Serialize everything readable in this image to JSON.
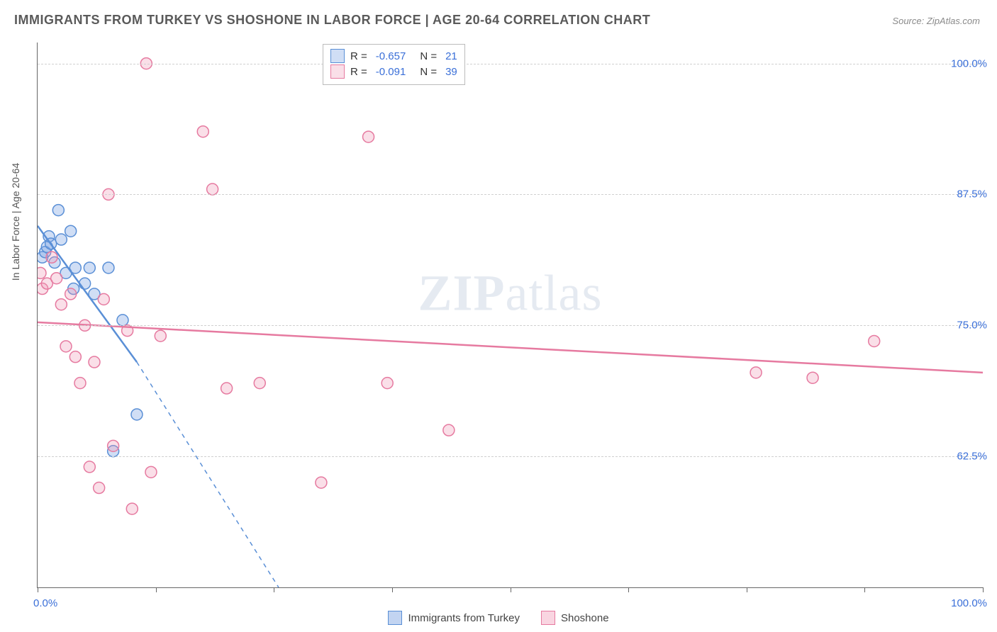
{
  "title": "IMMIGRANTS FROM TURKEY VS SHOSHONE IN LABOR FORCE | AGE 20-64 CORRELATION CHART",
  "source_label": "Source:",
  "source_value": "ZipAtlas.com",
  "ylabel": "In Labor Force | Age 20-64",
  "watermark_bold": "ZIP",
  "watermark_light": "atlas",
  "chart": {
    "type": "scatter",
    "xlim": [
      0,
      100
    ],
    "ylim": [
      50,
      102
    ],
    "x_tick_positions": [
      0,
      12.5,
      25,
      37.5,
      50,
      62.5,
      75,
      87.5,
      100
    ],
    "y_grid_positions": [
      62.5,
      75,
      87.5,
      100
    ],
    "y_tick_labels": [
      "62.5%",
      "75.0%",
      "87.5%",
      "100.0%"
    ],
    "x_left_label": "0.0%",
    "x_right_label": "100.0%",
    "background_color": "#ffffff",
    "grid_color": "#d0d0d0",
    "axis_color": "#666666",
    "tick_label_color": "#3a6fd8",
    "marker_radius": 8,
    "marker_stroke_width": 1.5,
    "trend_line_width": 2.5,
    "series": [
      {
        "name": "Immigrants from Turkey",
        "fill": "rgba(120,160,225,0.35)",
        "stroke": "#5a8fd6",
        "R": "-0.657",
        "N": "21",
        "trend": {
          "x1": 0,
          "y1": 84.5,
          "x2": 10.5,
          "y2": 71.5,
          "dash_extend_x2": 25.5,
          "dash_extend_y2": 50
        },
        "points": [
          [
            0.5,
            81.5
          ],
          [
            0.8,
            82.0
          ],
          [
            1.0,
            82.5
          ],
          [
            1.2,
            83.5
          ],
          [
            1.4,
            82.8
          ],
          [
            1.8,
            81.0
          ],
          [
            2.2,
            86.0
          ],
          [
            2.5,
            83.2
          ],
          [
            3.0,
            80.0
          ],
          [
            3.5,
            84.0
          ],
          [
            3.8,
            78.5
          ],
          [
            4.0,
            80.5
          ],
          [
            5.0,
            79.0
          ],
          [
            5.5,
            80.5
          ],
          [
            6.0,
            78.0
          ],
          [
            7.5,
            80.5
          ],
          [
            9.0,
            75.5
          ],
          [
            10.5,
            66.5
          ],
          [
            8.0,
            63.0
          ]
        ]
      },
      {
        "name": "Shoshone",
        "fill": "rgba(240,150,180,0.30)",
        "stroke": "#e67aa0",
        "R": "-0.091",
        "N": "39",
        "trend": {
          "x1": 0,
          "y1": 75.3,
          "x2": 100,
          "y2": 70.5
        },
        "points": [
          [
            0.3,
            80.0
          ],
          [
            0.5,
            78.5
          ],
          [
            1.0,
            79.0
          ],
          [
            1.5,
            81.5
          ],
          [
            2.0,
            79.5
          ],
          [
            2.5,
            77.0
          ],
          [
            3.0,
            73.0
          ],
          [
            3.5,
            78.0
          ],
          [
            4.0,
            72.0
          ],
          [
            4.5,
            69.5
          ],
          [
            5.0,
            75.0
          ],
          [
            5.5,
            61.5
          ],
          [
            6.0,
            71.5
          ],
          [
            6.5,
            59.5
          ],
          [
            7.0,
            77.5
          ],
          [
            7.5,
            87.5
          ],
          [
            8.0,
            63.5
          ],
          [
            9.5,
            74.5
          ],
          [
            10.0,
            57.5
          ],
          [
            11.5,
            100.0
          ],
          [
            12.0,
            61.0
          ],
          [
            13.0,
            74.0
          ],
          [
            17.5,
            93.5
          ],
          [
            18.5,
            88.0
          ],
          [
            20.0,
            69.0
          ],
          [
            23.5,
            69.5
          ],
          [
            30.0,
            60.0
          ],
          [
            35.0,
            93.0
          ],
          [
            37.0,
            69.5
          ],
          [
            43.5,
            65.0
          ],
          [
            76.0,
            70.5
          ],
          [
            82.0,
            70.0
          ],
          [
            88.5,
            73.5
          ]
        ]
      }
    ]
  },
  "bottom_legend": [
    {
      "label": "Immigrants from Turkey",
      "fill": "rgba(120,160,225,0.45)",
      "stroke": "#5a8fd6"
    },
    {
      "label": "Shoshone",
      "fill": "rgba(240,150,180,0.40)",
      "stroke": "#e67aa0"
    }
  ]
}
